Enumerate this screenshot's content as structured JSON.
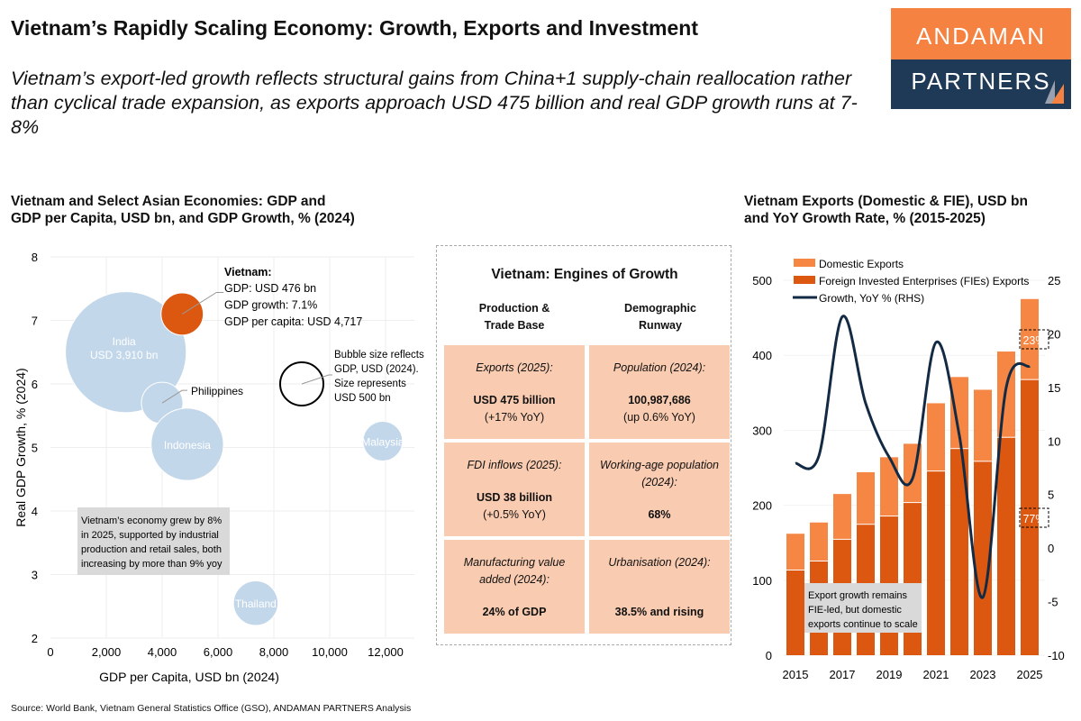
{
  "header": {
    "title": "Vietnam’s Rapidly Scaling Economy: Growth, Exports and Investment",
    "subtitle": "Vietnam’s export-led growth reflects structural gains from China+1 supply-chain reallocation rather than cyclical trade expansion, as exports approach USD 475 billion and real GDP growth runs at 7-8%"
  },
  "logo": {
    "line1": "ANDAMAN",
    "line2": "PARTNERS",
    "colors": {
      "top": "#f58240",
      "bottom": "#1f3a56"
    }
  },
  "chart_data": [
    {
      "type": "scatter",
      "title_line1": "Vietnam and Select Asian Economies: GDP and",
      "title_line2": "GDP per Capita, USD bn, and GDP Growth, % (2024)",
      "xlabel": "GDP per Capita, USD bn (2024)",
      "ylabel": "Real GDP Growth, % (2024)",
      "xlim": [
        0,
        13000
      ],
      "ylim": [
        2,
        8
      ],
      "xticks": [
        0,
        2000,
        4000,
        6000,
        8000,
        10000,
        12000
      ],
      "xtick_labels": [
        "0",
        "2,000",
        "4,000",
        "6,000",
        "8,000",
        "10,000",
        "12,000"
      ],
      "yticks": [
        2,
        3,
        4,
        5,
        6,
        7,
        8
      ],
      "grid": true,
      "points": [
        {
          "name": "India",
          "label": "India",
          "label2": "USD 3,910 bn",
          "x": 2700,
          "y": 6.5,
          "gdp": 3910,
          "color": "#c3d7ea"
        },
        {
          "name": "Vietnam",
          "x": 4717,
          "y": 7.1,
          "gdp": 476,
          "color": "#dc570f"
        },
        {
          "name": "Philippines",
          "label": "Philippines",
          "x": 4000,
          "y": 5.7,
          "gdp": 460,
          "color": "#c3d7ea"
        },
        {
          "name": "Indonesia",
          "label": "Indonesia",
          "x": 4900,
          "y": 5.05,
          "gdp": 1400,
          "color": "#c3d7ea"
        },
        {
          "name": "Malaysia",
          "label": "Malaysia",
          "x": 11900,
          "y": 5.1,
          "gdp": 420,
          "color": "#c3d7ea"
        },
        {
          "name": "Thailand",
          "label": "Thailand",
          "x": 7350,
          "y": 2.55,
          "gdp": 530,
          "color": "#c3d7ea"
        }
      ],
      "size_legend": {
        "x": 9000,
        "y": 6,
        "gdp": 500,
        "lines": [
          "Bubble size reflects",
          "GDP, USD (2024).",
          "Size represents",
          "USD 500 bn"
        ]
      },
      "vietnam_callout": {
        "head": "Vietnam:",
        "lines": [
          "GDP: USD 476 bn",
          "GDP growth: 7.1%",
          "GDP per capita: USD 4,717"
        ]
      },
      "note": [
        "Vietnam’s economy grew by 8%",
        "in 2025, supported by industrial",
        "production and retail sales, both",
        "increasing by more than 9% yoy"
      ]
    },
    {
      "type": "bar",
      "stacked": true,
      "title_line1": "Vietnam Exports (Domestic & FIE), USD bn",
      "title_line2": "and YoY Growth Rate, % (2015-2025)",
      "categories": [
        2015,
        2016,
        2017,
        2018,
        2019,
        2020,
        2021,
        2022,
        2023,
        2024,
        2025
      ],
      "xtick_labels": [
        "2015",
        "2017",
        "2019",
        "2021",
        "2023",
        "2025"
      ],
      "ylim": [
        0,
        500
      ],
      "yticks": [
        "0",
        "100",
        "200",
        "300",
        "400",
        "500"
      ],
      "y2lim": [
        -10,
        25
      ],
      "y2ticks": [
        "-10",
        "-5",
        "0",
        "5",
        "10",
        "15",
        "20",
        "25"
      ],
      "series": [
        {
          "name": "Foreign Invested Enterprises (FIEs) Exports",
          "color": "#dc570f",
          "values": [
            113,
            125,
            154,
            174,
            185,
            203,
            245,
            275,
            258,
            290,
            367
          ]
        },
        {
          "name": "Domestic Exports",
          "color": "#f58643",
          "values": [
            49,
            52,
            61,
            70,
            79,
            79,
            91,
            96,
            96,
            115,
            108
          ]
        },
        {
          "name": "Growth, YoY % (RHS)",
          "color": "#132a44",
          "axis": "right",
          "type": "line",
          "values": [
            7.9,
            8.6,
            21.6,
            13.5,
            8.5,
            6.5,
            19.2,
            10.5,
            -4.6,
            15,
            17
          ]
        }
      ],
      "annotations": {
        "share_domestic": "23%",
        "share_fie": "77%",
        "note": [
          "Export growth remains",
          "FIE-led, but domestic",
          "exports continue to scale"
        ]
      }
    }
  ],
  "panel": {
    "title": "Vietnam: Engines of Growth",
    "columns": [
      {
        "h1": "Production &",
        "h2": "Trade Base"
      },
      {
        "h1": "Demographic",
        "h2": "Runway"
      }
    ],
    "cards": [
      {
        "label": "Exports (2025):",
        "value": "USD 475 billion",
        "sub": "(+17% YoY)"
      },
      {
        "label": "Population (2024):",
        "value": "100,987,686",
        "sub": "(up 0.6% YoY)"
      },
      {
        "label": "FDI inflows (2025):",
        "value": "USD 38 billion",
        "sub": "(+0.5% YoY)"
      },
      {
        "label": "Working-age population (2024):",
        "value": "68%",
        "sub": ""
      },
      {
        "label": "Manufacturing value added (2024):",
        "value": "24% of GDP",
        "sub": ""
      },
      {
        "label": "Urbanisation (2024):",
        "value": "38.5% and rising",
        "sub": ""
      }
    ]
  },
  "source": "Source: World Bank, Vietnam General Statistics Office (GSO), ANDAMAN PARTNERS Analysis"
}
